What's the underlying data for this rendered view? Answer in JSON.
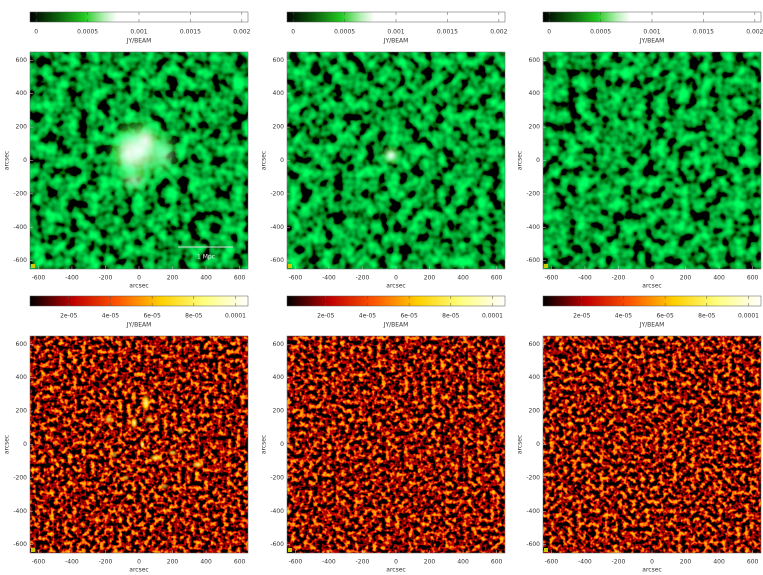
{
  "chart_data": [
    {
      "type": "image",
      "colormap": "green",
      "colorbar_label": "JY/BEAM",
      "clim": [
        -6e-05,
        0.00206
      ],
      "cticks": [
        0,
        0.0005,
        0.001,
        0.0015,
        0.002
      ],
      "xlabel": "arcsec",
      "ylabel": "arcsec",
      "xlim": [
        -650,
        650
      ],
      "ylim": [
        -650,
        650
      ],
      "xticks": [
        -600,
        -400,
        -200,
        0,
        200,
        400,
        600
      ],
      "yticks": [
        -600,
        -400,
        -200,
        0,
        200,
        400,
        600
      ],
      "annotation": "1 Mpc"
    },
    {
      "type": "image",
      "colormap": "green",
      "colorbar_label": "JY/BEAM",
      "clim": [
        -6e-05,
        0.00206
      ],
      "cticks": [
        0,
        0.0005,
        0.001,
        0.0015,
        0.002
      ],
      "xlabel": "arcsec",
      "ylabel": "arcsec",
      "xlim": [
        -650,
        650
      ],
      "ylim": [
        -650,
        650
      ],
      "xticks": [
        -600,
        -400,
        -200,
        0,
        200,
        400,
        600
      ],
      "yticks": [
        -600,
        -400,
        -200,
        0,
        200,
        400,
        600
      ]
    },
    {
      "type": "image",
      "colormap": "green",
      "colorbar_label": "JY/BEAM",
      "clim": [
        -6e-05,
        0.00206
      ],
      "cticks": [
        0,
        0.0005,
        0.001,
        0.0015,
        0.002
      ],
      "xlabel": "arcsec",
      "ylabel": "arcsec",
      "xlim": [
        -650,
        650
      ],
      "ylim": [
        -650,
        650
      ],
      "xticks": [
        -600,
        -400,
        -200,
        0,
        200,
        400,
        600
      ],
      "yticks": [
        -600,
        -400,
        -200,
        0,
        200,
        400,
        600
      ]
    },
    {
      "type": "image",
      "colormap": "heat",
      "colorbar_label": "JY/BEAM",
      "clim": [
        1.4e-06,
        0.000106
      ],
      "cticks": [
        {
          "value": 2e-05,
          "label": "2e-05"
        },
        {
          "value": 4e-05,
          "label": "4e-05"
        },
        {
          "value": 6e-05,
          "label": "6e-05"
        },
        {
          "value": 8e-05,
          "label": "8e-05"
        },
        0.0001
      ],
      "xlabel": "arcsec",
      "ylabel": "arcsec",
      "xlim": [
        -650,
        650
      ],
      "ylim": [
        -650,
        650
      ],
      "xticks": [
        -600,
        -400,
        -200,
        0,
        200,
        400,
        600
      ],
      "yticks": [
        -600,
        -400,
        -200,
        0,
        200,
        400,
        600
      ]
    },
    {
      "type": "image",
      "colormap": "heat",
      "colorbar_label": "JY/BEAM",
      "clim": [
        1.4e-06,
        0.000106
      ],
      "cticks": [
        {
          "value": 2e-05,
          "label": "2e-05"
        },
        {
          "value": 4e-05,
          "label": "4e-05"
        },
        {
          "value": 6e-05,
          "label": "6e-05"
        },
        {
          "value": 8e-05,
          "label": "8e-05"
        },
        0.0001
      ],
      "xlabel": "arcsec",
      "ylabel": "arcsec",
      "xlim": [
        -650,
        650
      ],
      "ylim": [
        -650,
        650
      ],
      "xticks": [
        -600,
        -400,
        -200,
        0,
        200,
        400,
        600
      ],
      "yticks": [
        -600,
        -400,
        -200,
        0,
        200,
        400,
        600
      ]
    },
    {
      "type": "image",
      "colormap": "heat",
      "colorbar_label": "JY/BEAM",
      "clim": [
        1.4e-06,
        0.000106
      ],
      "cticks": [
        {
          "value": 2e-05,
          "label": "2e-05"
        },
        {
          "value": 4e-05,
          "label": "4e-05"
        },
        {
          "value": 6e-05,
          "label": "6e-05"
        },
        {
          "value": 8e-05,
          "label": "8e-05"
        },
        0.0001
      ],
      "xlabel": "arcsec",
      "ylabel": "arcsec",
      "xlim": [
        -650,
        650
      ],
      "ylim": [
        -650,
        650
      ],
      "xticks": [
        -600,
        -400,
        -200,
        0,
        200,
        400,
        600
      ],
      "yticks": [
        -600,
        -400,
        -200,
        0,
        200,
        400,
        600
      ]
    }
  ]
}
